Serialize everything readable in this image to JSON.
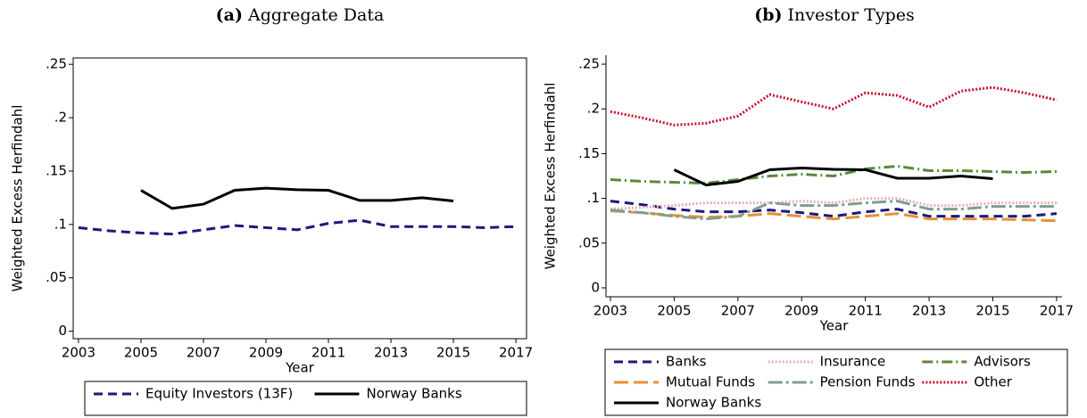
{
  "chart_data": [
    {
      "type": "line",
      "panel": "(a)",
      "title": "Aggregate Data",
      "xlabel": "Year",
      "ylabel": "Weighted Excess Herfindahl",
      "frame": true,
      "x": [
        2003,
        2004,
        2005,
        2006,
        2007,
        2008,
        2009,
        2010,
        2011,
        2012,
        2013,
        2014,
        2015,
        2016,
        2017
      ],
      "xlim": [
        2002.83,
        2017.34
      ],
      "xticks": [
        2003,
        2005,
        2007,
        2009,
        2011,
        2013,
        2015,
        2017
      ],
      "ylim": [
        -0.007,
        0.256
      ],
      "yticks": [
        0,
        {
          "value": 0.05,
          "label": ".05"
        },
        {
          "value": 0.1,
          "label": ".1"
        },
        {
          "value": 0.15,
          "label": ".15"
        },
        {
          "value": 0.2,
          "label": ".2"
        },
        {
          "value": 0.25,
          "label": ".25"
        }
      ],
      "series": [
        {
          "name": "Equity Investors (13F)",
          "color": "#1a1a80",
          "style": "dashed",
          "values": [
            0.097,
            0.094,
            0.092,
            0.091,
            0.095,
            0.099,
            0.097,
            0.095,
            0.101,
            0.104,
            0.098,
            0.098,
            0.098,
            0.097,
            0.098
          ]
        },
        {
          "name": "Norway Banks",
          "color": "#000000",
          "style": "solid",
          "values": [
            null,
            null,
            0.132,
            0.115,
            0.119,
            0.132,
            0.134,
            0.1325,
            0.132,
            0.1225,
            0.1225,
            0.125,
            0.122,
            null,
            null
          ]
        }
      ]
    },
    {
      "type": "line",
      "panel": "(b)",
      "title": "Investor Types",
      "xlabel": "Year",
      "ylabel": "Weighted Excess Herfindahl",
      "frame": false,
      "x": [
        2003,
        2004,
        2005,
        2006,
        2007,
        2008,
        2009,
        2010,
        2011,
        2012,
        2013,
        2014,
        2015,
        2016,
        2017
      ],
      "xlim": [
        2002.86,
        2017.17
      ],
      "xticks": [
        2003,
        2005,
        2007,
        2009,
        2011,
        2013,
        2015,
        2017
      ],
      "ylim": [
        -0.01,
        0.26
      ],
      "yticks": [
        0,
        {
          "value": 0.05,
          "label": ".05"
        },
        {
          "value": 0.1,
          "label": ".1"
        },
        {
          "value": 0.15,
          "label": ".15"
        },
        {
          "value": 0.2,
          "label": ".2"
        },
        {
          "value": 0.25,
          "label": ".25"
        }
      ],
      "series": [
        {
          "name": "Banks",
          "color": "#1a1a80",
          "style": "dashed",
          "values": [
            0.097,
            0.093,
            0.088,
            0.085,
            0.085,
            0.087,
            0.084,
            0.08,
            0.085,
            0.088,
            0.08,
            0.08,
            0.08,
            0.08,
            0.083
          ]
        },
        {
          "name": "Insurance",
          "color": "#e8b0b0",
          "style": "dotted",
          "values": [
            0.088,
            0.09,
            0.092,
            0.095,
            0.095,
            0.095,
            0.097,
            0.095,
            0.1,
            0.1,
            0.092,
            0.092,
            0.095,
            0.095,
            0.095
          ]
        },
        {
          "name": "Advisors",
          "color": "#5a8a3a",
          "style": "dashdot",
          "values": [
            0.121,
            0.119,
            0.118,
            0.117,
            0.121,
            0.125,
            0.127,
            0.125,
            0.133,
            0.136,
            0.131,
            0.131,
            0.13,
            0.129,
            0.13
          ]
        },
        {
          "name": "Mutual Funds",
          "color": "#e69138",
          "style": "longdash",
          "values": [
            0.086,
            0.084,
            0.081,
            0.079,
            0.08,
            0.083,
            0.08,
            0.077,
            0.08,
            0.083,
            0.077,
            0.077,
            0.077,
            0.076,
            0.075
          ]
        },
        {
          "name": "Pension Funds",
          "color": "#7f9f8f",
          "style": "longdashdot",
          "values": [
            0.087,
            0.084,
            0.08,
            0.077,
            0.08,
            0.095,
            0.092,
            0.092,
            0.095,
            0.097,
            0.088,
            0.088,
            0.091,
            0.091,
            0.091
          ]
        },
        {
          "name": "Other",
          "color": "#c8102e",
          "style": "dotted",
          "values": [
            0.197,
            0.19,
            0.182,
            0.184,
            0.192,
            0.216,
            0.208,
            0.2,
            0.218,
            0.215,
            0.202,
            0.22,
            0.224,
            0.218,
            0.21
          ]
        },
        {
          "name": "Norway Banks",
          "color": "#000000",
          "style": "solid",
          "values": [
            null,
            null,
            0.132,
            0.115,
            0.119,
            0.132,
            0.134,
            0.1325,
            0.132,
            0.1225,
            0.1225,
            0.125,
            0.122,
            null,
            null
          ]
        }
      ]
    }
  ]
}
